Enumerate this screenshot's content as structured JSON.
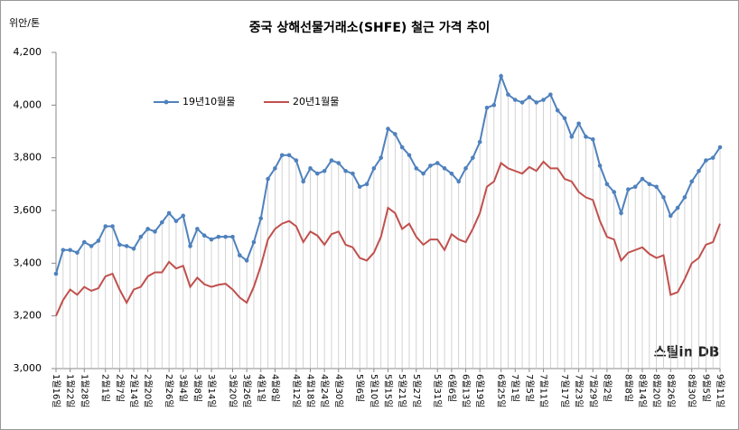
{
  "chart_data": {
    "type": "line",
    "title": "중국 상해선물거래소(SHFE)  철근 가격 추이",
    "y_label": "위안/톤",
    "watermark": "스틸in DB",
    "legend": "upper left",
    "drop_lines": true,
    "ylim": [
      3000,
      4200
    ],
    "yticks": [
      {
        "value": 3000,
        "label": "3,000"
      },
      {
        "value": 3200,
        "label": "3,200"
      },
      {
        "value": 3400,
        "label": "3,400"
      },
      {
        "value": 3600,
        "label": "3,600"
      },
      {
        "value": 3800,
        "label": "3,800"
      },
      {
        "value": 4000,
        "label": "4,000"
      },
      {
        "value": 4200,
        "label": "4,200"
      }
    ],
    "label_dates": [
      "1월16일",
      "1월22일",
      "1월28일",
      "2월1일",
      "2월7일",
      "2월14일",
      "2월20일",
      "2월26일",
      "3월4일",
      "3월8일",
      "3월14일",
      "3월20일",
      "3월26일",
      "4월1일",
      "4월8일",
      "4월12일",
      "4월18일",
      "4월24일",
      "4월30일",
      "5월6일",
      "5월10일",
      "5월15일",
      "5월21일",
      "5월27일",
      "5월31일",
      "6월6일",
      "6월13일",
      "6월19일",
      "6월25일",
      "7월1일",
      "7월5일",
      "7월11일",
      "7월17일",
      "7월23일",
      "7월29일",
      "8월2일",
      "8월8일",
      "8월14일",
      "8월20일",
      "8월26일",
      "8월30일",
      "9월5일",
      "9월11일"
    ],
    "series": [
      {
        "name": "19년10월물",
        "color": "#4f81bd",
        "values": [
          3360,
          3450,
          3450,
          3440,
          3480,
          3465,
          3485,
          3540,
          3540,
          3470,
          3465,
          3455,
          3500,
          3530,
          3520,
          3555,
          3590,
          3560,
          3580,
          3465,
          3530,
          3505,
          3490,
          3500,
          3500,
          3500,
          3430,
          3410,
          3480,
          3570,
          3720,
          3760,
          3810,
          3810,
          3790,
          3710,
          3760,
          3740,
          3750,
          3790,
          3780,
          3750,
          3740,
          3690,
          3700,
          3760,
          3800,
          3910,
          3890,
          3840,
          3810,
          3760,
          3740,
          3770,
          3780,
          3760,
          3740,
          3710,
          3760,
          3800,
          3860,
          3990,
          4000,
          4110,
          4040,
          4020,
          4010,
          4030,
          4010,
          4020,
          4040,
          3980,
          3950,
          3880,
          3930,
          3880,
          3870,
          3770,
          3700,
          3670,
          3590,
          3680,
          3690,
          3720,
          3700,
          3690,
          3650,
          3580,
          3610,
          3650,
          3710,
          3750,
          3790,
          3800,
          3840
        ]
      },
      {
        "name": "20년1월물",
        "color": "#c0504d",
        "values": [
          3200,
          3260,
          3300,
          3280,
          3310,
          3295,
          3305,
          3350,
          3360,
          3300,
          3250,
          3300,
          3310,
          3350,
          3365,
          3365,
          3405,
          3380,
          3390,
          3310,
          3345,
          3320,
          3310,
          3318,
          3322,
          3300,
          3270,
          3250,
          3310,
          3390,
          3490,
          3530,
          3550,
          3560,
          3540,
          3480,
          3520,
          3505,
          3470,
          3510,
          3520,
          3470,
          3460,
          3420,
          3410,
          3440,
          3500,
          3610,
          3590,
          3530,
          3550,
          3500,
          3470,
          3490,
          3490,
          3450,
          3510,
          3490,
          3480,
          3530,
          3590,
          3690,
          3710,
          3780,
          3760,
          3750,
          3740,
          3765,
          3750,
          3785,
          3760,
          3760,
          3720,
          3710,
          3670,
          3650,
          3640,
          3560,
          3500,
          3490,
          3410,
          3440,
          3450,
          3460,
          3435,
          3420,
          3430,
          3280,
          3290,
          3340,
          3400,
          3420,
          3470,
          3480,
          3550
        ]
      }
    ]
  }
}
